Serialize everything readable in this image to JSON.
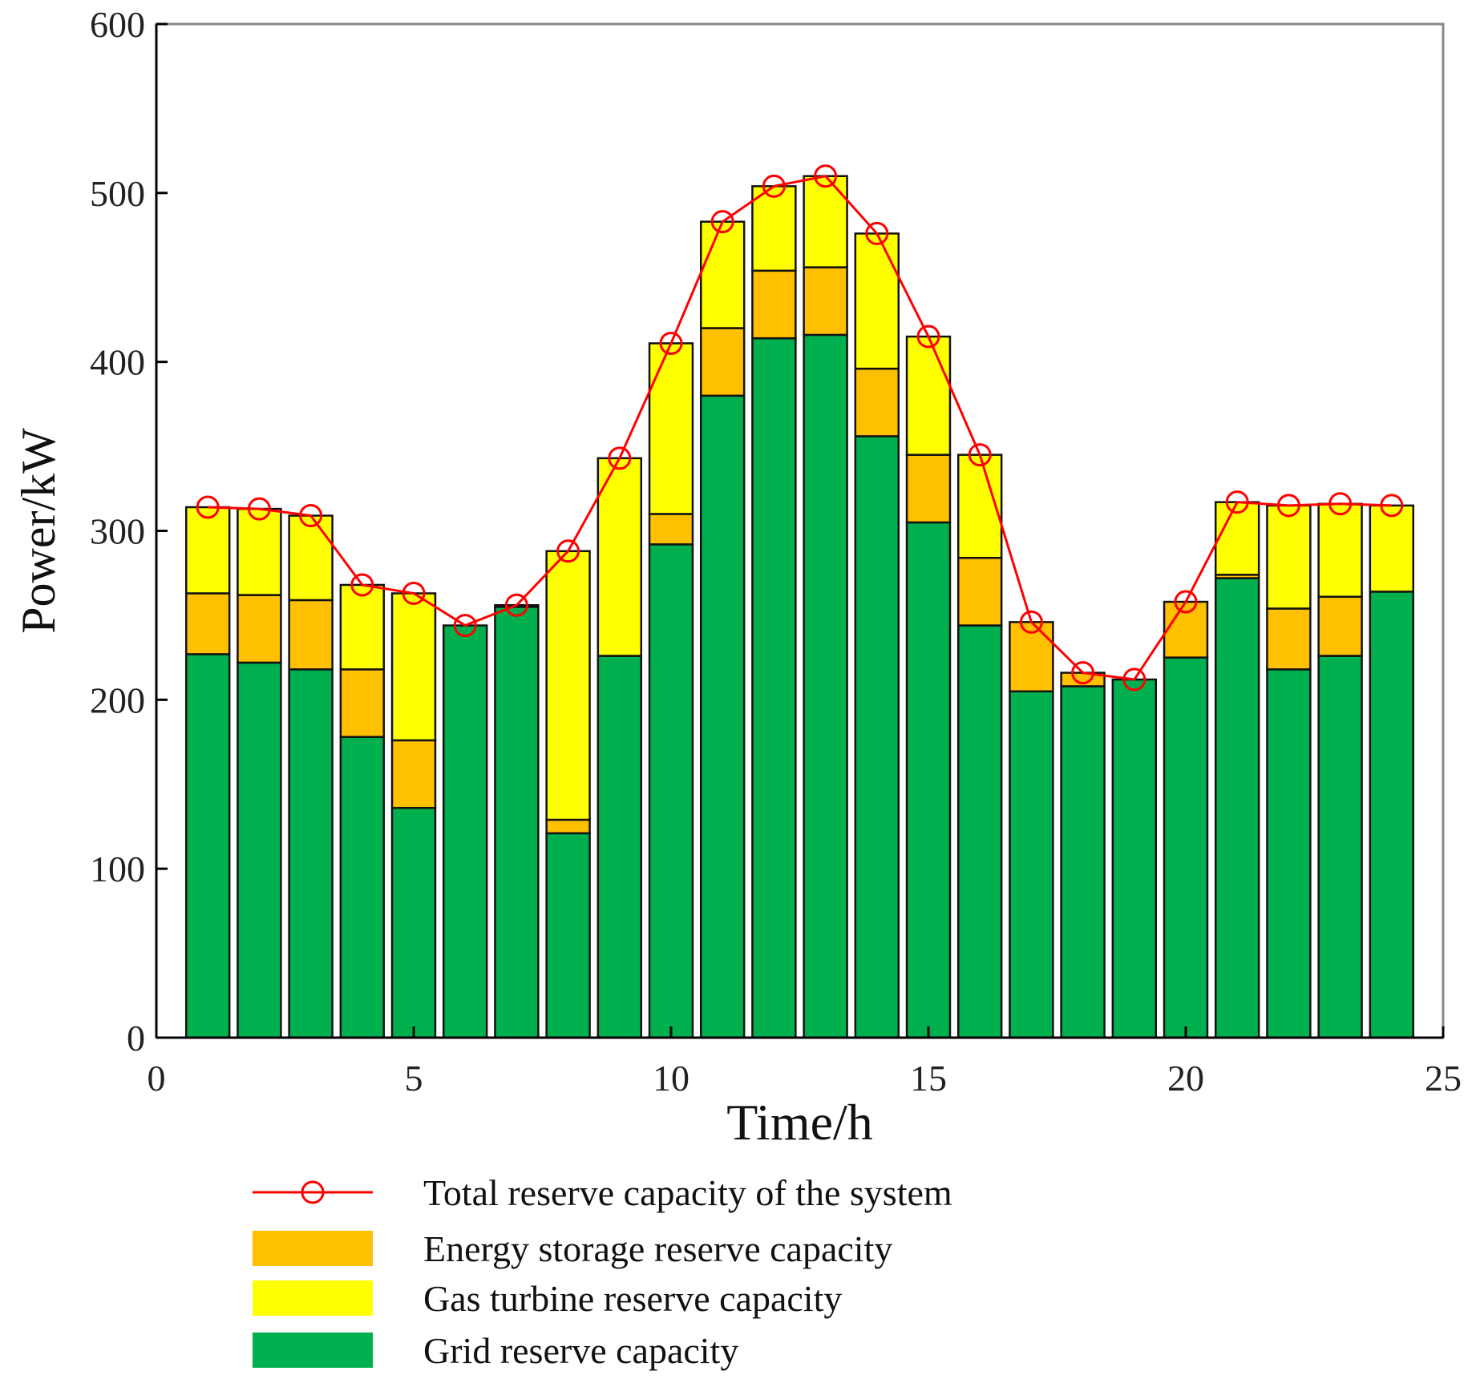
{
  "chart_data": {
    "type": "bar",
    "subtype": "stacked-bar-with-line",
    "title": "",
    "xlabel": "Time/h",
    "ylabel": "Power/kW",
    "xlim": [
      0,
      25
    ],
    "ylim": [
      0,
      600
    ],
    "xticks": [
      0,
      5,
      10,
      15,
      20,
      25
    ],
    "yticks": [
      0,
      100,
      200,
      300,
      400,
      500,
      600
    ],
    "grid": false,
    "legend_position": "bottom",
    "x": [
      1,
      2,
      3,
      4,
      5,
      6,
      7,
      8,
      9,
      10,
      11,
      12,
      13,
      14,
      15,
      16,
      17,
      18,
      19,
      20,
      21,
      22,
      23,
      24
    ],
    "series": [
      {
        "name": "Grid reserve capacity",
        "kind": "bar",
        "color": "#00AF4E",
        "values": [
          227,
          222,
          218,
          178,
          136,
          244,
          255,
          121,
          226,
          292,
          380,
          414,
          416,
          356,
          305,
          244,
          205,
          208,
          212,
          225,
          272,
          218,
          226,
          264
        ]
      },
      {
        "name": "Energy storage reserve capacity",
        "kind": "bar",
        "color": "#FFC000",
        "values": [
          36,
          40,
          41,
          40,
          40,
          0,
          1,
          8,
          0,
          18,
          40,
          40,
          40,
          40,
          40,
          40,
          41,
          8,
          0,
          33,
          2,
          36,
          35,
          0
        ]
      },
      {
        "name": "Gas turbine reserve capacity",
        "kind": "bar",
        "color": "#FFFF00",
        "values": [
          51,
          51,
          50,
          50,
          87,
          0,
          0,
          159,
          117,
          101,
          63,
          50,
          54,
          80,
          70,
          61,
          0,
          0,
          0,
          0,
          43,
          61,
          55,
          51
        ]
      },
      {
        "name": "Total reserve capacity of the system",
        "kind": "line",
        "color": "#FF0000",
        "marker": "circle",
        "values": [
          314,
          313,
          309,
          268,
          263,
          244,
          256,
          288,
          343,
          411,
          483,
          504,
          510,
          476,
          415,
          345,
          246,
          216,
          212,
          258,
          317,
          315,
          316,
          315
        ]
      }
    ],
    "legend": [
      {
        "label": "Total reserve capacity of the system",
        "kind": "line",
        "color": "#FF0000"
      },
      {
        "label": "Energy storage reserve capacity",
        "kind": "patch",
        "color": "#FFC000"
      },
      {
        "label": "Gas turbine reserve capacity",
        "kind": "patch",
        "color": "#FFFF00"
      },
      {
        "label": "Grid reserve capacity",
        "kind": "patch",
        "color": "#00AF4E"
      }
    ],
    "colors": {
      "axis": "#000000",
      "frame": "#888888",
      "bar_outline": "#111111"
    }
  }
}
